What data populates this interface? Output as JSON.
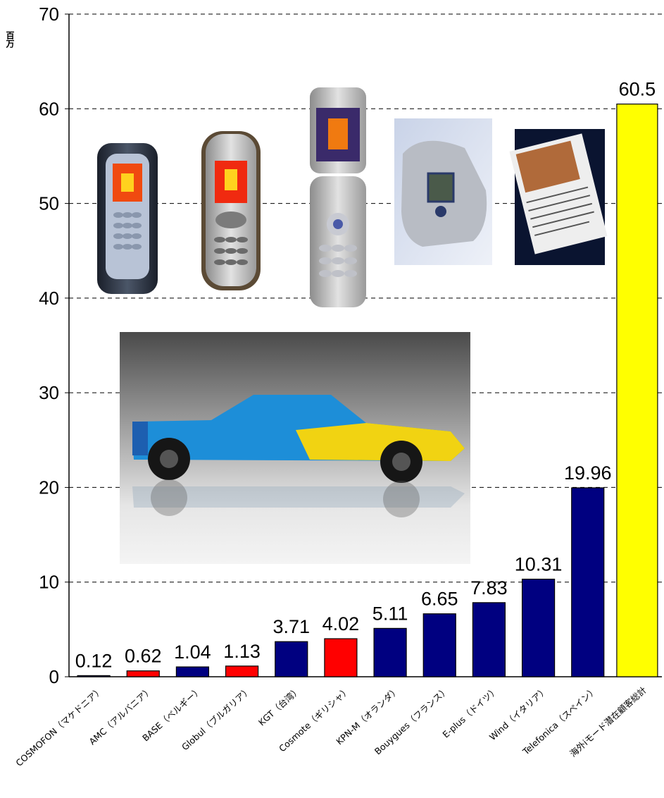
{
  "chart_data": {
    "type": "bar",
    "ylabel": "百万",
    "ylim": [
      0,
      70
    ],
    "yticks": [
      0,
      10,
      20,
      30,
      40,
      50,
      60,
      70
    ],
    "grid": true,
    "categories": [
      "COSMOFON（マケドニア）",
      "AMC（アルバニア）",
      "BASE（ベルギー）",
      "Globul（ブルガリア）",
      "KGT（台湾）",
      "Cosmote（ギリシャ）",
      "KPN-M（オランダ）",
      "Bouygues（フランス）",
      "E-plus（ドイツ）",
      "Wind（イタリア）",
      "Telefonica（スペイン）",
      "海外iモード潜在顧客総計"
    ],
    "values": [
      0.12,
      0.62,
      1.04,
      1.13,
      3.71,
      4.02,
      5.11,
      6.65,
      7.83,
      10.31,
      19.96,
      60.5
    ],
    "value_labels": [
      "0.12",
      "0.62",
      "1.04",
      "1.13",
      "3.71",
      "4.02",
      "5.11",
      "6.65",
      "7.83",
      "10.31",
      "19.96",
      "60.5"
    ],
    "bar_colors": [
      "#000080",
      "#ff0000",
      "#000080",
      "#ff0000",
      "#000080",
      "#ff0000",
      "#000080",
      "#000080",
      "#000080",
      "#000080",
      "#000080",
      "#ffff00"
    ]
  },
  "images": {
    "phone1": "phone-1-image",
    "phone2": "phone-2-image",
    "phone3": "flip-phone-image",
    "phone4": "silver-flip-phone-image",
    "phone5": "phone-screen-news-image",
    "car": "formula-one-car-image"
  }
}
